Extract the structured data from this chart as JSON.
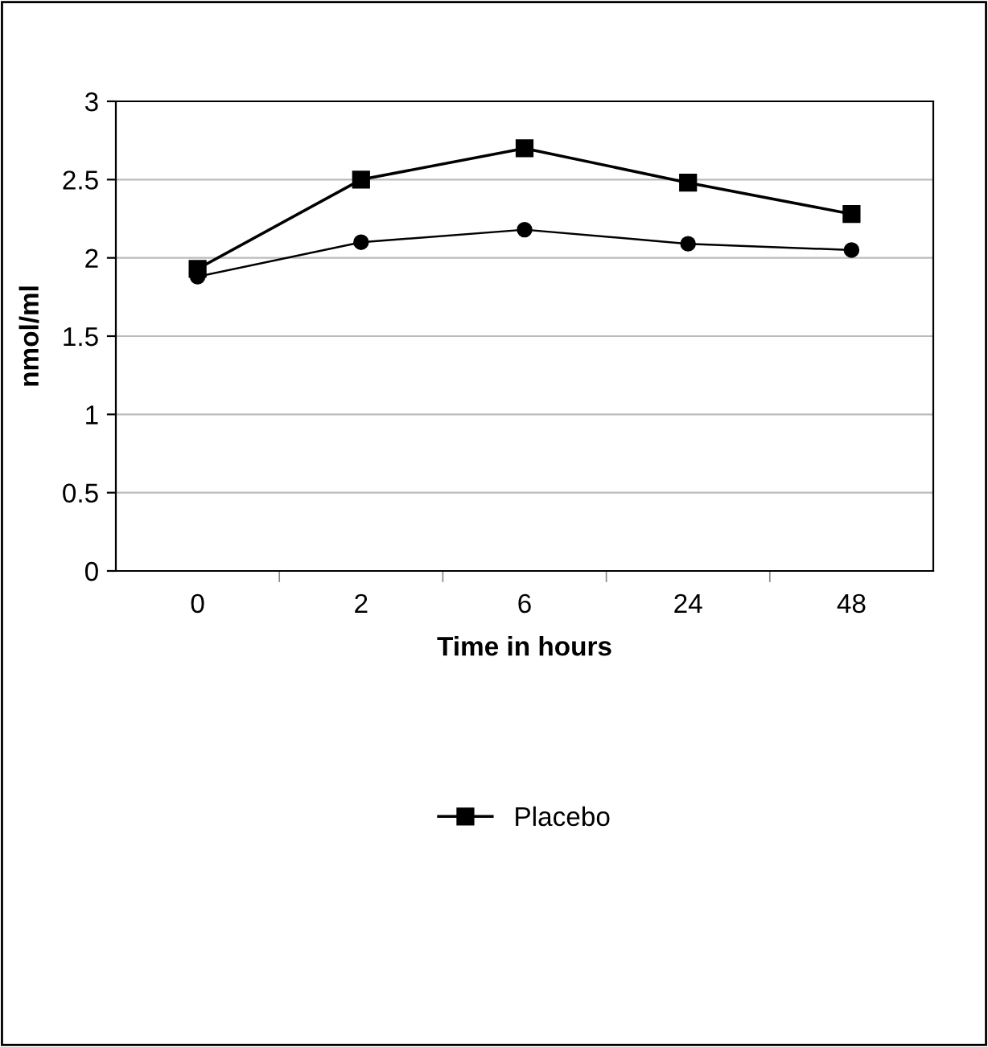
{
  "chart_data": {
    "type": "line",
    "xlabel": "Time in hours",
    "ylabel": "nmol/ml",
    "categories": [
      "0",
      "2",
      "6",
      "24",
      "48"
    ],
    "series": [
      {
        "name": "Placebo",
        "color": "#000000",
        "marker": "square",
        "values": [
          1.93,
          2.5,
          2.7,
          2.48,
          2.28
        ]
      },
      {
        "color": "#000000",
        "marker": "circle",
        "values": [
          1.88,
          2.1,
          2.18,
          2.09,
          2.05
        ]
      }
    ],
    "ylim": [
      0,
      3
    ],
    "yticks": [
      0,
      0.5,
      1,
      1.5,
      2,
      2.5,
      3
    ],
    "grid": "y",
    "legend": "bottom",
    "line_style": "solid"
  }
}
